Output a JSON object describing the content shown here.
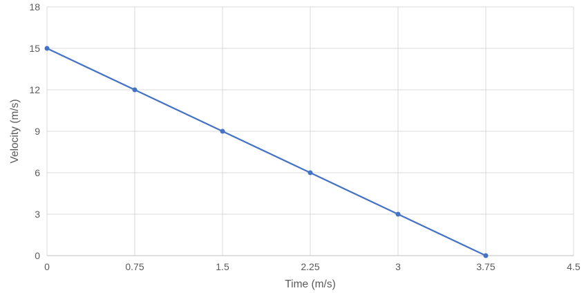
{
  "chart_data": {
    "type": "line",
    "x": [
      0,
      0.75,
      1.5,
      2.25,
      3,
      3.75
    ],
    "series": [
      {
        "name": "Velocity",
        "values": [
          15,
          12,
          9,
          6,
          3,
          0
        ]
      }
    ],
    "title": "",
    "xlabel": "Time (m/s)",
    "ylabel": "Velocity (m/s)",
    "xlim": [
      0,
      4.5
    ],
    "ylim": [
      0,
      18
    ],
    "x_ticks": [
      "0",
      "0.75",
      "1.5",
      "2.25",
      "3",
      "3.75",
      "4.5"
    ],
    "y_ticks": [
      "0",
      "3",
      "6",
      "9",
      "12",
      "15",
      "18"
    ],
    "grid": true,
    "legend": "none",
    "marker": "circle",
    "colors": {
      "line": "#4472C4",
      "marker": "#4472C4",
      "gridline": "#D9D9D9",
      "axis_line": "#BFBFBF",
      "tick_label": "#595959",
      "axis_title": "#595959",
      "background": "#FFFFFF"
    }
  }
}
